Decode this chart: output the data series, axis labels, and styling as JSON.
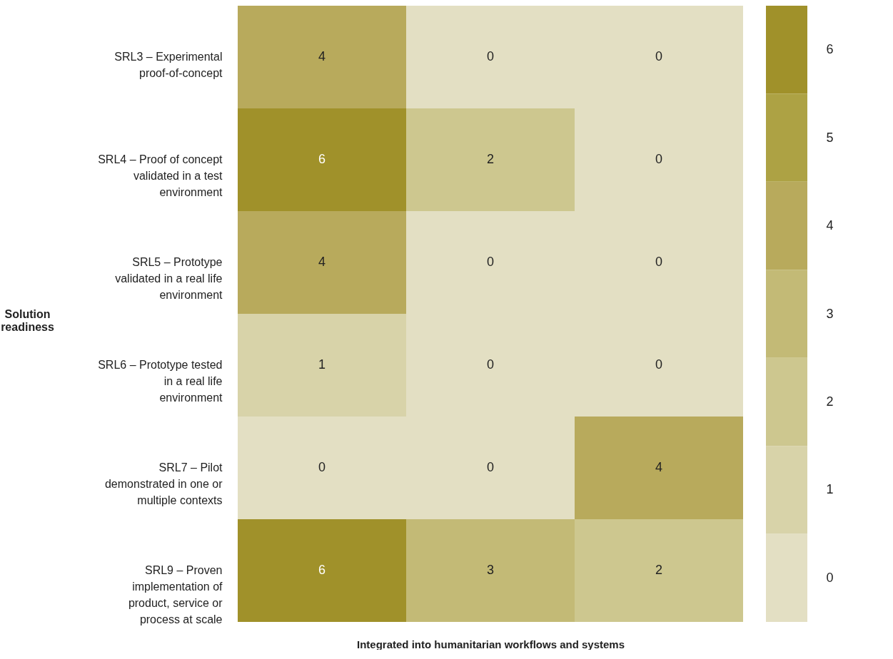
{
  "chart_data": {
    "type": "heatmap",
    "xlabel": "Integrated into humanitarian workflows and systems",
    "ylabel": "Solution readiness",
    "categories": [
      null,
      null,
      null
    ],
    "y_categories": [
      "SRL3 – Experimental proof-of-concept",
      "SRL4 – Proof of concept validated in a test environment",
      "SRL5 – Prototype validated in a real life environment",
      "SRL6 – Prototype tested in a real life environment",
      "SRL7 – Pilot demonstrated in one or multiple contexts",
      "SRL9 – Proven implementation of product, service or process at scale"
    ],
    "cells": [
      [
        4,
        0,
        0
      ],
      [
        6,
        2,
        0
      ],
      [
        4,
        0,
        0
      ],
      [
        1,
        0,
        0
      ],
      [
        0,
        0,
        4
      ],
      [
        6,
        3,
        2
      ]
    ],
    "data_labels": true,
    "clim": [
      -0.5,
      6.5
    ],
    "cticks": [
      0,
      1,
      2,
      3,
      4,
      5,
      6
    ],
    "colors": [
      "#e3dfc3",
      "#d8d3a9",
      "#cdc78f",
      "#c3ba76",
      "#b8aa5c",
      "#ada244",
      "#a0912a"
    ]
  }
}
